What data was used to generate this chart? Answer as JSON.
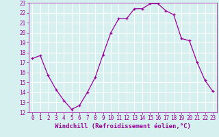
{
  "x": [
    0,
    1,
    2,
    3,
    4,
    5,
    6,
    7,
    8,
    9,
    10,
    11,
    12,
    13,
    14,
    15,
    16,
    17,
    18,
    19,
    20,
    21,
    22,
    23
  ],
  "y": [
    17.4,
    17.7,
    15.7,
    14.3,
    13.2,
    12.3,
    12.7,
    14.0,
    15.5,
    17.8,
    20.0,
    21.4,
    21.4,
    22.4,
    22.4,
    22.9,
    22.9,
    22.2,
    21.8,
    19.4,
    19.2,
    17.0,
    15.2,
    14.1
  ],
  "line_color": "#990099",
  "marker": "+",
  "marker_size": 3,
  "bg_color": "#d6f0f0",
  "grid_color": "#ffffff",
  "xlabel": "Windchill (Refroidissement éolien,°C)",
  "xlabel_color": "#990099",
  "tick_color": "#990099",
  "ylim": [
    12,
    23
  ],
  "xlim": [
    -0.5,
    23.5
  ],
  "yticks": [
    12,
    13,
    14,
    15,
    16,
    17,
    18,
    19,
    20,
    21,
    22,
    23
  ],
  "xticks": [
    0,
    1,
    2,
    3,
    4,
    5,
    6,
    7,
    8,
    9,
    10,
    11,
    12,
    13,
    14,
    15,
    16,
    17,
    18,
    19,
    20,
    21,
    22,
    23
  ],
  "tick_fontsize": 5.5,
  "xlabel_fontsize": 6.5
}
